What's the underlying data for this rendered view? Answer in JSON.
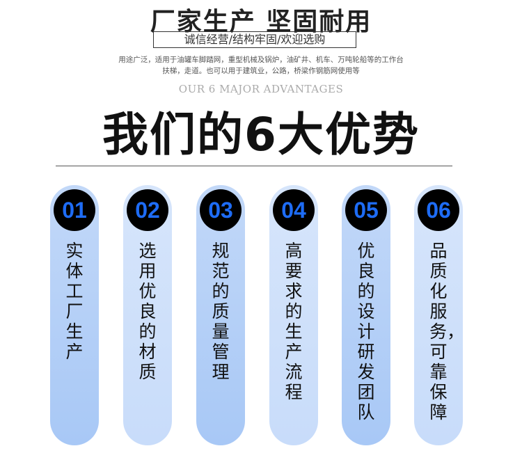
{
  "header": {
    "headline": "厂家生产 坚固耐用",
    "tagline": "诚信经营/结构牢固/欢迎选购",
    "description_line1": "用途广泛，适用于油罐车脚踏网，重型机械及锅炉，油矿井、机车、万吨轮船等的工作台",
    "description_line2": "扶梯，走道。也可以用于建筑业，公路，桥梁作钢筋网使用等",
    "english_title": "OUR 6 MAJOR ADVANTAGES",
    "title": "我们的6大优势"
  },
  "colors": {
    "badge_number": "#1e6cf5",
    "badge_bg": "#000000",
    "pill_dark": "#a8c8f6",
    "pill_light": "#d6e5fb"
  },
  "advantages": [
    {
      "number": "01",
      "text": "实体工厂生产"
    },
    {
      "number": "02",
      "text": "选用优良的材质"
    },
    {
      "number": "03",
      "text": "规范的质量管理"
    },
    {
      "number": "04",
      "text": "高要求的生产流程"
    },
    {
      "number": "05",
      "text": "优良的设计研发团队"
    },
    {
      "number": "06",
      "text": "品质化服务，可靠保障"
    }
  ]
}
